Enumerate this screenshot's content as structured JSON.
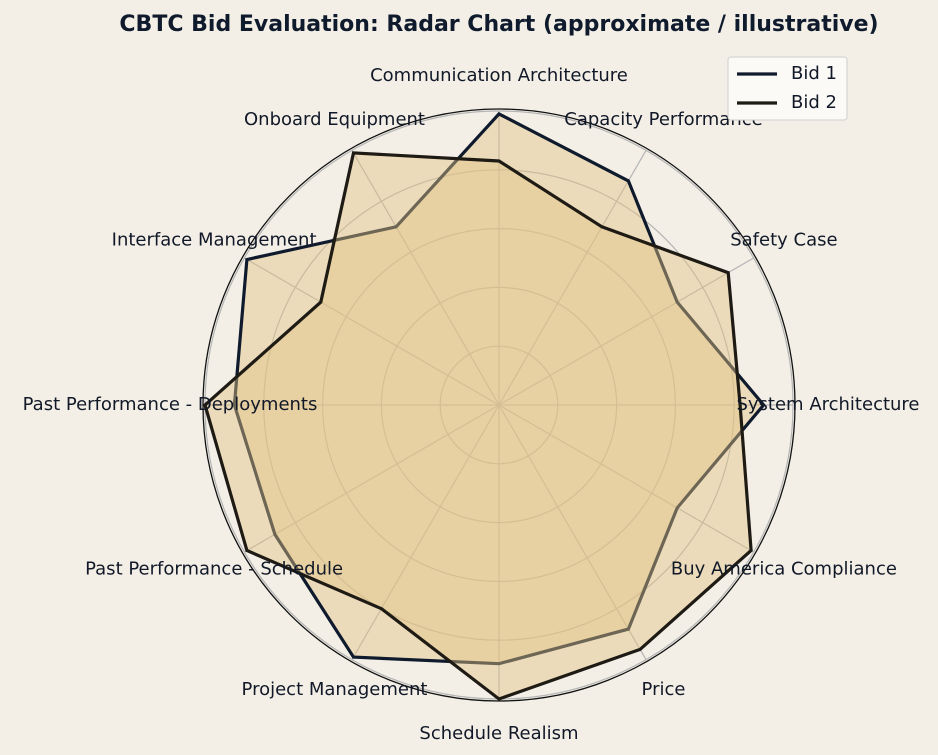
{
  "chart_data": {
    "type": "radar",
    "title": "CBTC Bid Evaluation: Radar Chart (approximate / illustrative)",
    "categories": [
      "Communication Architecture",
      "Capacity Performance",
      "Safety Case",
      "System Architecture",
      "Buy America Compliance",
      "Price",
      "Schedule Realism",
      "Project Management",
      "Past Performance - Schedule",
      "Past Performance - Deployments",
      "Interface Management",
      "Onboard Equipment"
    ],
    "rlim": [
      0,
      10
    ],
    "grid": true,
    "legend_position": "top-right",
    "series": [
      {
        "name": "Bid 1",
        "color": "#0f1b2d",
        "fill": "#e2c485",
        "values": [
          9.9,
          8.8,
          7.0,
          9.0,
          7.0,
          8.8,
          8.8,
          9.9,
          8.8,
          9.0,
          9.9,
          7.0
        ]
      },
      {
        "name": "Bid 2",
        "color": "#1e1a14",
        "fill": "#e2c485",
        "values": [
          8.3,
          7.0,
          9.0,
          8.2,
          9.9,
          9.6,
          10.0,
          8.0,
          9.9,
          10.0,
          7.0,
          9.9
        ]
      }
    ]
  }
}
